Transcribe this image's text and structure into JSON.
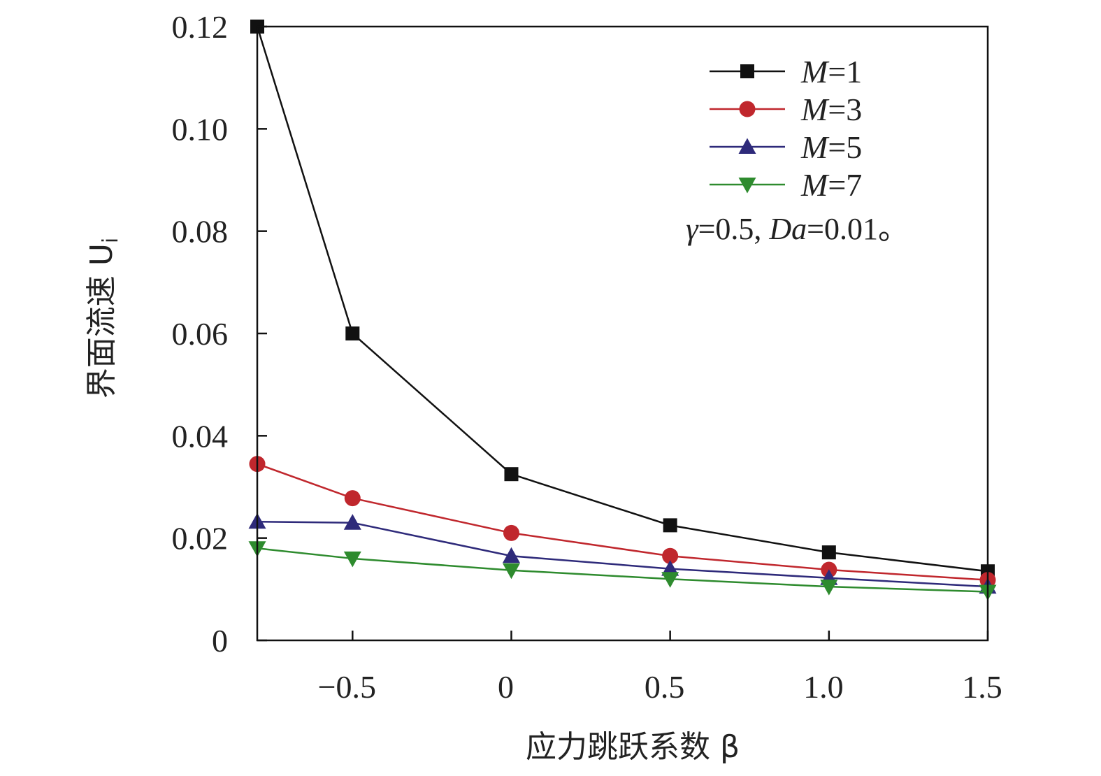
{
  "chart_data": {
    "type": "line",
    "title": "",
    "xlabel": "应力跳跃系数 β",
    "ylabel": "界面流速 U",
    "ylabel_subscript": "i",
    "xlim": [
      -0.8,
      1.5
    ],
    "ylim": [
      0,
      0.12
    ],
    "x_ticks": [
      -0.5,
      0,
      0.5,
      1.0,
      1.5
    ],
    "x_tick_labels": [
      "−0.5",
      "0",
      "0.5",
      "1.0",
      "1.5"
    ],
    "y_ticks": [
      0,
      0.02,
      0.04,
      0.06,
      0.08,
      0.1,
      0.12
    ],
    "y_tick_labels": [
      "0",
      "0.02",
      "0.04",
      "0.06",
      "0.08",
      "0.10",
      "0.12"
    ],
    "grid": false,
    "legend_position": "top-right",
    "x": [
      -0.8,
      -0.5,
      0,
      0.5,
      1.0,
      1.5
    ],
    "series": [
      {
        "name": "M=1",
        "label_var": "M",
        "label_val": "=1",
        "color": "#111111",
        "marker": "square",
        "values": [
          0.12,
          0.06,
          0.0325,
          0.0225,
          0.0172,
          0.0135
        ]
      },
      {
        "name": "M=3",
        "label_var": "M",
        "label_val": "=3",
        "color": "#c0272d",
        "marker": "circle",
        "values": [
          0.0345,
          0.0278,
          0.021,
          0.0165,
          0.0138,
          0.0118
        ]
      },
      {
        "name": "M=5",
        "label_var": "M",
        "label_val": "=5",
        "color": "#2e2a7a",
        "marker": "triangle-up",
        "values": [
          0.0232,
          0.023,
          0.0165,
          0.014,
          0.0122,
          0.0105
        ]
      },
      {
        "name": "M=7",
        "label_var": "M",
        "label_val": "=7",
        "color": "#2e8b2e",
        "marker": "triangle-down",
        "values": [
          0.018,
          0.016,
          0.0137,
          0.012,
          0.0105,
          0.0095
        ]
      }
    ],
    "annotation": {
      "gamma_symbol": "γ",
      "gamma_value": "=0.5, ",
      "da_symbol": "Da",
      "da_value": "=0.01。"
    }
  }
}
